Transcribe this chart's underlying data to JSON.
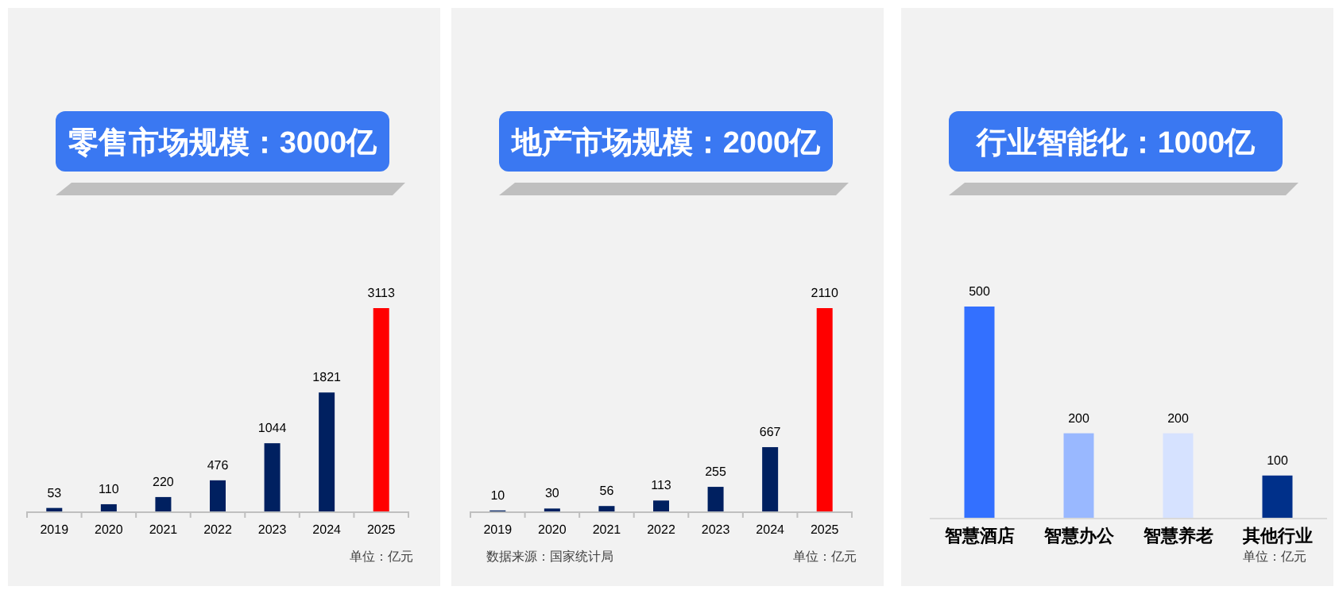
{
  "chart_data": [
    {
      "type": "bar",
      "title": "零售市场规模：3000亿",
      "categories": [
        "2019",
        "2020",
        "2021",
        "2022",
        "2023",
        "2024",
        "2025"
      ],
      "values": [
        53,
        110,
        220,
        476,
        1044,
        1821,
        3113
      ],
      "data_labels": true,
      "colors": [
        "#002060",
        "#002060",
        "#002060",
        "#002060",
        "#002060",
        "#002060",
        "#ff0000"
      ],
      "annotations": [
        "单位：亿元"
      ]
    },
    {
      "type": "bar",
      "title": "地产市场规模：2000亿",
      "categories": [
        "2019",
        "2020",
        "2021",
        "2022",
        "2023",
        "2024",
        "2025"
      ],
      "values": [
        10,
        30,
        56,
        113,
        255,
        667,
        2110
      ],
      "data_labels": true,
      "colors": [
        "#002060",
        "#002060",
        "#002060",
        "#002060",
        "#002060",
        "#002060",
        "#ff0000"
      ],
      "annotations": [
        "数据来源：国家统计局",
        "单位：亿元"
      ]
    },
    {
      "type": "bar",
      "title": "行业智能化：1000亿",
      "categories": [
        "智慧酒店",
        "智慧办公",
        "智慧养老",
        "其他行业"
      ],
      "values": [
        500,
        200,
        200,
        100
      ],
      "data_labels": true,
      "colors": [
        "#3370ff",
        "#99b8ff",
        "#d6e2ff",
        "#00308a"
      ],
      "annotations": [
        "单位：亿元"
      ]
    }
  ]
}
